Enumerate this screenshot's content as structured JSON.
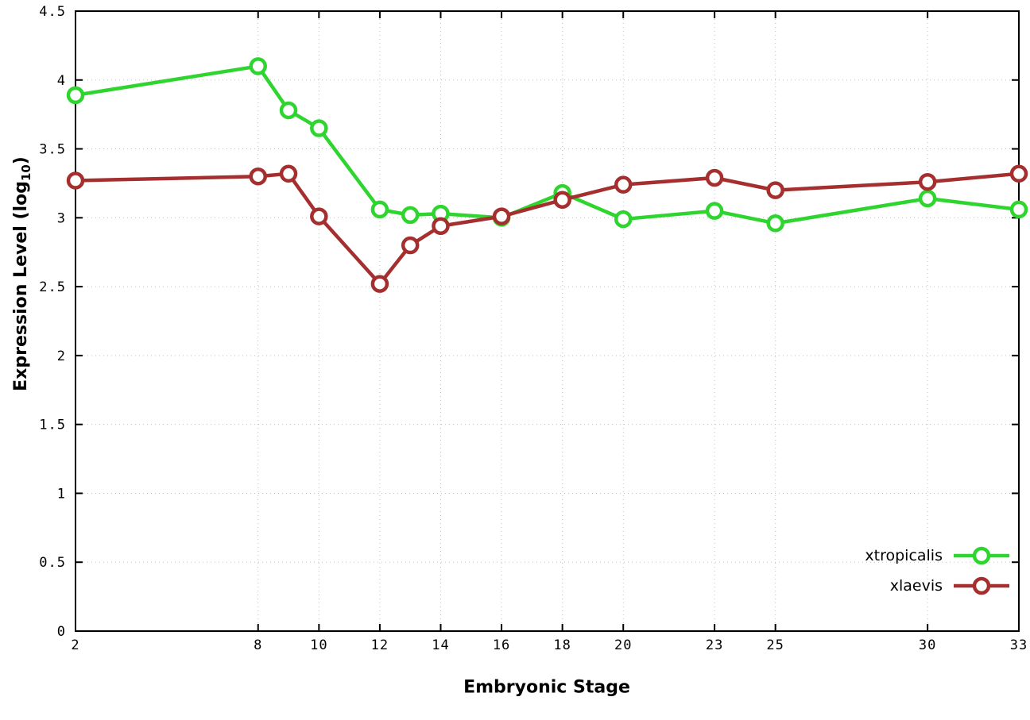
{
  "chart_data": {
    "type": "line",
    "title": "",
    "xlabel": "Embryonic Stage",
    "ylabel_parts": {
      "prefix": "Expression Level (log",
      "sub": "10",
      "suffix": ")"
    },
    "x": [
      2,
      8,
      9,
      10,
      12,
      13,
      14,
      16,
      18,
      20,
      23,
      25,
      30,
      33
    ],
    "series": [
      {
        "name": "xtropicalis",
        "color": "#2fd52f",
        "values": [
          3.89,
          4.1,
          3.78,
          3.65,
          3.06,
          3.02,
          3.03,
          3.0,
          3.18,
          2.99,
          3.05,
          2.96,
          3.14,
          3.06
        ]
      },
      {
        "name": "xlaevis",
        "color": "#a52f2f",
        "values": [
          3.27,
          3.3,
          3.32,
          3.01,
          2.52,
          2.8,
          2.94,
          3.01,
          3.13,
          3.24,
          3.29,
          3.2,
          3.26,
          3.32
        ]
      }
    ],
    "xlim": [
      2,
      33
    ],
    "ylim": [
      0,
      4.5
    ],
    "xticks": {
      "values": [
        2,
        8,
        10,
        12,
        14,
        16,
        18,
        20,
        23,
        25,
        30,
        33
      ],
      "labels": [
        "2",
        "8",
        "10",
        "12",
        "14",
        "16",
        "18",
        "20",
        "23",
        "25",
        "30",
        "33"
      ]
    },
    "yticks": {
      "values": [
        0,
        0.5,
        1,
        1.5,
        2,
        2.5,
        3,
        3.5,
        4,
        4.5
      ],
      "labels": [
        "0",
        "0.5",
        "1",
        "1.5",
        "2",
        "2.5",
        "3",
        "3.5",
        "4",
        "4.5"
      ]
    },
    "grid": true,
    "grid_color": "#c0c0c0",
    "axis_color": "#000000",
    "background": "#ffffff",
    "marker": "open-circle",
    "legend_position": "bottom-right"
  }
}
